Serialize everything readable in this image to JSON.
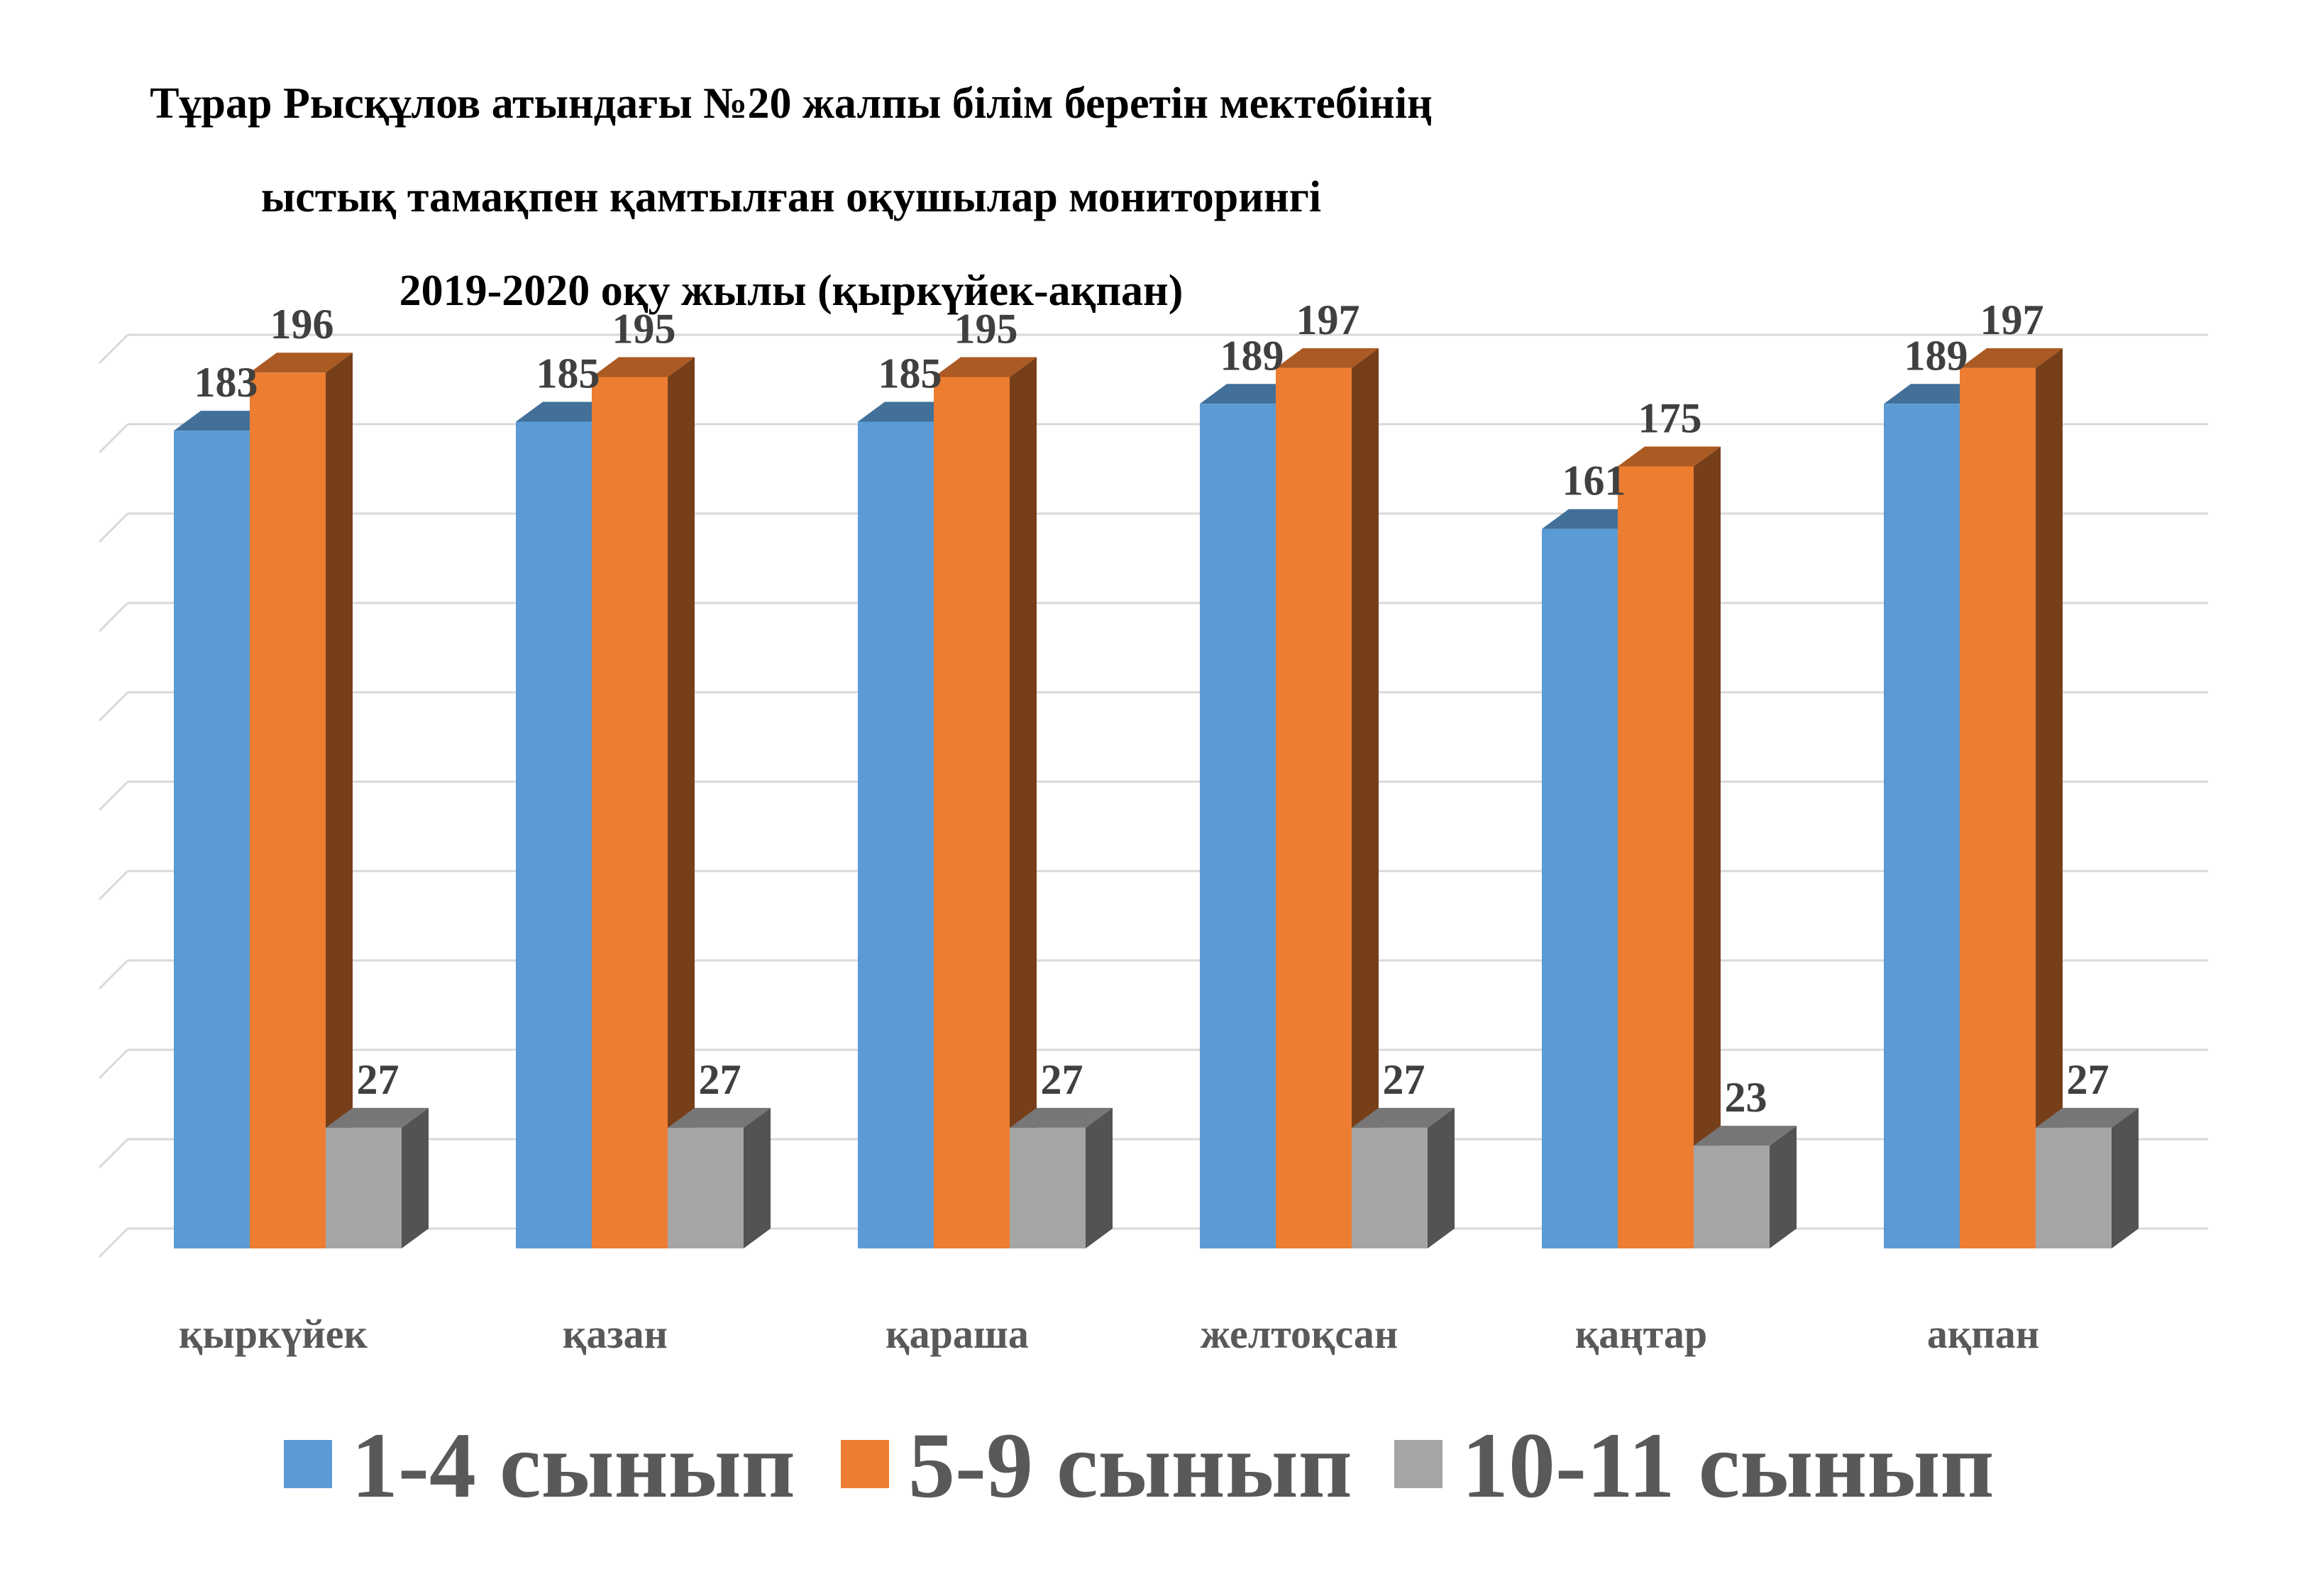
{
  "chart_data": {
    "type": "bar",
    "title_lines": [
      "Тұрар Рысқұлов атындағы №20 жалпы білім беретін мектебінің",
      "ыстық тамақпен қамтылған оқушылар мониторингі",
      "2019-2020 оқу жылы (қыркүйек-ақпан)"
    ],
    "categories": [
      "қыркүйек",
      "қазан",
      "қараша",
      "желтоқсан",
      "қаңтар",
      "ақпан"
    ],
    "series": [
      {
        "name": "1-4 сынып",
        "values": [
          183,
          185,
          185,
          189,
          161,
          189
        ],
        "color": "#5B9BD5"
      },
      {
        "name": "5-9 сынып",
        "values": [
          196,
          195,
          195,
          197,
          175,
          197
        ],
        "color": "#ED7D31"
      },
      {
        "name": "10-11 сынып",
        "values": [
          27,
          27,
          27,
          27,
          23,
          27
        ],
        "color": "#A5A5A5"
      }
    ],
    "ylim": [
      0,
      200
    ],
    "grid": true,
    "legend": "bottom",
    "three_d": true
  }
}
